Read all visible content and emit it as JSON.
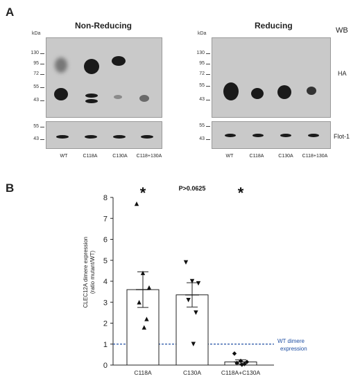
{
  "panel_a": {
    "letter": "A",
    "blot_label": "WB",
    "ha_label": "HA",
    "flot_label": "Flot-1",
    "kda_label": "kDa",
    "non_reducing": {
      "title": "Non-Reducing",
      "ha_markers": [
        "130",
        "95",
        "72",
        "55",
        "43"
      ],
      "flot_markers": [
        "55",
        "43"
      ],
      "lanes": [
        "WT",
        "C118A",
        "C130A",
        "C118+130A"
      ]
    },
    "reducing": {
      "title": "Reducing",
      "ha_markers": [
        "130",
        "95",
        "72",
        "55",
        "43"
      ],
      "flot_markers": [
        "55",
        "43"
      ],
      "lanes": [
        "WT",
        "C118A",
        "C130A",
        "C118+130A"
      ]
    }
  },
  "panel_b": {
    "letter": "B",
    "significance": [
      "*",
      "P>0.0625",
      "*"
    ],
    "reference_label_1": "WT dimere",
    "reference_label_2": "expression",
    "reference_color": "#1f4fa3"
  },
  "chart_data": {
    "type": "bar",
    "categories": [
      "C118A",
      "C130A",
      "C118A+C130A"
    ],
    "values": [
      3.6,
      3.35,
      0.15
    ],
    "error": [
      0.85,
      0.58,
      0.1
    ],
    "points": [
      [
        7.7,
        4.4,
        3.7,
        3.0,
        2.2,
        1.8
      ],
      [
        4.9,
        4.0,
        3.9,
        3.1,
        2.5,
        1.0
      ],
      [
        0.55,
        0.2,
        0.15,
        0.1,
        0.05,
        0.02
      ]
    ],
    "markers": [
      "triangle-up",
      "triangle-down",
      "diamond"
    ],
    "ylabel": "CLEC12A dimere expression",
    "ylabel2": "(ratio mutant/WT)",
    "yticks": [
      "0",
      "1",
      "2",
      "3",
      "4",
      "5",
      "6",
      "7",
      "8"
    ],
    "ylim": [
      0,
      8
    ],
    "reference_line": 1
  }
}
